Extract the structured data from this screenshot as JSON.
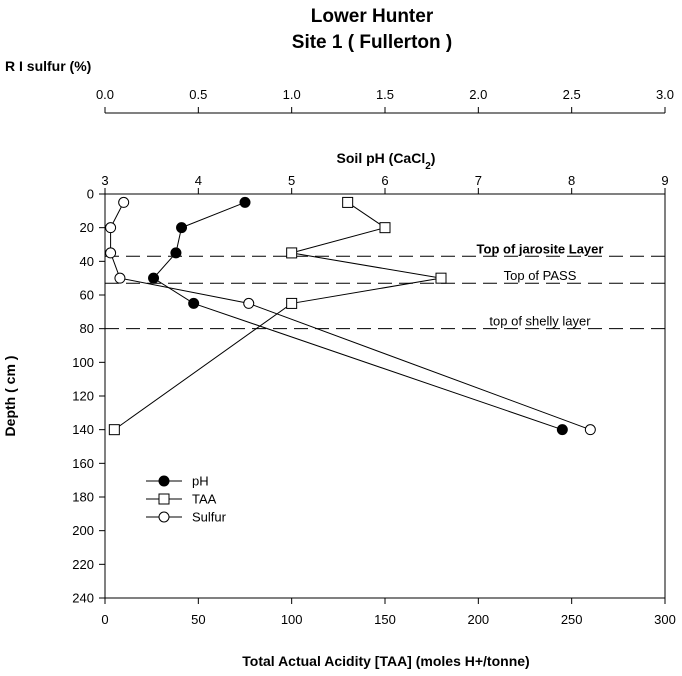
{
  "chart_data": {
    "type": "scatter",
    "title": "Lower Hunter",
    "subtitle": "Site 1 ( Fullerton )",
    "axes": {
      "depth": {
        "label": "Depth ( cm )",
        "range": [
          0,
          240
        ],
        "ticks": [
          "0",
          "20",
          "40",
          "60",
          "80",
          "100",
          "120",
          "140",
          "160",
          "180",
          "200",
          "220",
          "240"
        ]
      },
      "taa": {
        "label": "Total Actual Acidity [TAA] (moles H+/tonne)",
        "range": [
          0,
          300
        ],
        "ticks": [
          "0",
          "50",
          "100",
          "150",
          "200",
          "250",
          "300"
        ]
      },
      "ph": {
        "label_main": "Soil pH (CaCl",
        "label_sub": "2",
        "label_end": ")",
        "range": [
          3,
          9
        ],
        "ticks": [
          "3",
          "4",
          "5",
          "6",
          "7",
          "8",
          "9"
        ]
      },
      "sulfur": {
        "label": "R I sulfur (%)",
        "range": [
          0.0,
          3.0
        ],
        "ticks": [
          "0.0",
          "0.5",
          "1.0",
          "1.5",
          "2.0",
          "2.5",
          "3.0"
        ]
      }
    },
    "series": [
      {
        "name": "pH",
        "axis": "ph",
        "marker": "filled-circle",
        "points": [
          {
            "x": 4.5,
            "depth": 5
          },
          {
            "x": 3.82,
            "depth": 20
          },
          {
            "x": 3.76,
            "depth": 35
          },
          {
            "x": 3.52,
            "depth": 50
          },
          {
            "x": 3.95,
            "depth": 65
          },
          {
            "x": 7.9,
            "depth": 140
          }
        ]
      },
      {
        "name": "TAA",
        "axis": "taa",
        "marker": "open-square",
        "points": [
          {
            "x": 130,
            "depth": 5
          },
          {
            "x": 150,
            "depth": 20
          },
          {
            "x": 100,
            "depth": 35
          },
          {
            "x": 180,
            "depth": 50
          },
          {
            "x": 100,
            "depth": 65
          },
          {
            "x": 5,
            "depth": 140
          }
        ]
      },
      {
        "name": "Sulfur",
        "axis": "sulfur",
        "marker": "open-circle",
        "points": [
          {
            "x": 0.1,
            "depth": 5
          },
          {
            "x": 0.03,
            "depth": 20
          },
          {
            "x": 0.03,
            "depth": 35
          },
          {
            "x": 0.08,
            "depth": 50
          },
          {
            "x": 0.77,
            "depth": 65
          },
          {
            "x": 2.6,
            "depth": 140
          }
        ]
      }
    ],
    "reference_lines": [
      {
        "label": "Top of jarosite Layer",
        "depth": 37,
        "bold": true
      },
      {
        "label": "Top of PASS",
        "depth": 53,
        "bold": false
      },
      {
        "label": "top of shelly layer",
        "depth": 80,
        "bold": false
      }
    ],
    "legend": {
      "placement": "bottom-left",
      "entries": [
        "pH",
        "TAA",
        "Sulfur"
      ]
    },
    "grid": false
  }
}
